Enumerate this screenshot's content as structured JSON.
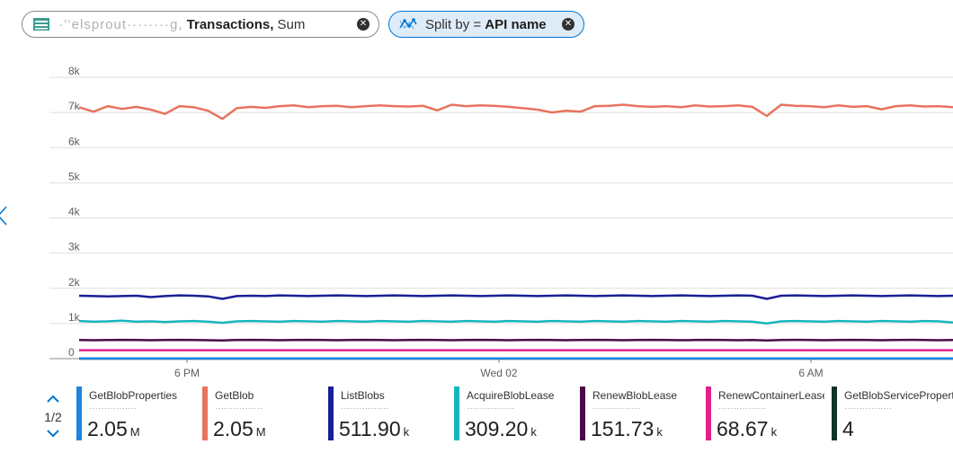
{
  "metric_pill": {
    "resource": "·’‘elsprout········g,",
    "metric": "Transactions,",
    "aggregation": "Sum"
  },
  "split_pill": {
    "prefix": "Split by =",
    "value": "API name"
  },
  "pager": {
    "label": "1/2"
  },
  "colors": {
    "accent": "#0078d4",
    "GetBlobProperties": "#1b85e0",
    "GetBlob": "#e8735e",
    "ListBlobs": "#1a1f96",
    "AcquireBlobLease": "#16b5be",
    "RenewBlobLease": "#4b0b47",
    "RenewContainerLease": "#e0208f",
    "GetBlobServiceProperties": "#0f3527"
  },
  "legend": [
    {
      "name": "GetBlobProperties",
      "sub": "················",
      "value": "2.05",
      "unit": "M",
      "color": "#1b85e0"
    },
    {
      "name": "GetBlob",
      "sub": "················",
      "value": "2.05",
      "unit": "M",
      "color": "#e8735e"
    },
    {
      "name": "ListBlobs",
      "sub": "················",
      "value": "511.90",
      "unit": "k",
      "color": "#1a1f96"
    },
    {
      "name": "AcquireBlobLease",
      "sub": "················",
      "value": "309.20",
      "unit": "k",
      "color": "#16b5be"
    },
    {
      "name": "RenewBlobLease",
      "sub": "················",
      "value": "151.73",
      "unit": "k",
      "color": "#4b0b47"
    },
    {
      "name": "RenewContainerLease",
      "sub": "················",
      "value": "68.67",
      "unit": "k",
      "color": "#e0208f"
    },
    {
      "name": "GetBlobServicePropert...",
      "sub": "················",
      "value": "4",
      "unit": "",
      "color": "#0f3527"
    }
  ],
  "chart_data": {
    "type": "line",
    "ylim": [
      0,
      8000
    ],
    "yticks": [
      "0",
      "1k",
      "2k",
      "3k",
      "4k",
      "5k",
      "6k",
      "7k",
      "8k"
    ],
    "xticks": [
      "6 PM",
      "Wed 02",
      "6 AM"
    ],
    "grid": true,
    "series": [
      {
        "name": "GetBlob",
        "color": "#e8735e",
        "values": [
          7150,
          7020,
          7180,
          7100,
          7160,
          7080,
          6960,
          7180,
          7150,
          7050,
          6820,
          7120,
          7160,
          7130,
          7180,
          7200,
          7150,
          7180,
          7190,
          7150,
          7180,
          7200,
          7180,
          7170,
          7190,
          7060,
          7220,
          7180,
          7200,
          7190,
          7160,
          7120,
          7080,
          7000,
          7050,
          7020,
          7180,
          7190,
          7220,
          7180,
          7160,
          7180,
          7150,
          7200,
          7170,
          7180,
          7200,
          7160,
          6900,
          7220,
          7190,
          7180,
          7150,
          7200,
          7160,
          7180,
          7090,
          7180,
          7200,
          7170,
          7180,
          7150
        ]
      },
      {
        "name": "ListBlobs",
        "color": "#1a1f96",
        "values": [
          1790,
          1780,
          1770,
          1780,
          1790,
          1750,
          1780,
          1800,
          1790,
          1770,
          1700,
          1780,
          1790,
          1780,
          1800,
          1790,
          1780,
          1790,
          1800,
          1790,
          1780,
          1790,
          1800,
          1790,
          1780,
          1790,
          1800,
          1790,
          1780,
          1790,
          1800,
          1790,
          1780,
          1790,
          1800,
          1790,
          1780,
          1790,
          1800,
          1790,
          1780,
          1790,
          1800,
          1790,
          1780,
          1790,
          1800,
          1790,
          1700,
          1790,
          1800,
          1790,
          1780,
          1790,
          1800,
          1790,
          1780,
          1790,
          1800,
          1790,
          1780,
          1790
        ]
      },
      {
        "name": "AcquireBlobLease",
        "color": "#16b5be",
        "values": [
          1070,
          1050,
          1060,
          1080,
          1050,
          1060,
          1040,
          1060,
          1070,
          1050,
          1020,
          1060,
          1070,
          1060,
          1050,
          1070,
          1060,
          1050,
          1070,
          1060,
          1050,
          1070,
          1060,
          1050,
          1070,
          1060,
          1050,
          1070,
          1060,
          1050,
          1070,
          1060,
          1050,
          1070,
          1060,
          1050,
          1070,
          1060,
          1050,
          1070,
          1060,
          1050,
          1070,
          1060,
          1050,
          1070,
          1060,
          1050,
          1000,
          1060,
          1070,
          1060,
          1050,
          1070,
          1060,
          1050,
          1070,
          1060,
          1050,
          1070,
          1060,
          1030
        ]
      },
      {
        "name": "RenewBlobLease",
        "color": "#4b0b47",
        "values": [
          530,
          525,
          530,
          535,
          530,
          525,
          530,
          535,
          530,
          525,
          520,
          530,
          535,
          530,
          525,
          530,
          535,
          530,
          525,
          530,
          535,
          530,
          525,
          530,
          535,
          530,
          525,
          530,
          535,
          530,
          525,
          530,
          535,
          530,
          525,
          530,
          535,
          530,
          525,
          530,
          535,
          530,
          525,
          530,
          535,
          530,
          525,
          530,
          520,
          530,
          535,
          530,
          525,
          530,
          535,
          530,
          525,
          530,
          535,
          530,
          525,
          530
        ]
      },
      {
        "name": "RenewContainerLease",
        "color": "#e0208f",
        "values": [
          240,
          240,
          240,
          240,
          240,
          240,
          240,
          240,
          240,
          240,
          240,
          240,
          240,
          240,
          240,
          240,
          240,
          240,
          240,
          240,
          240,
          240,
          240,
          240,
          240,
          240,
          240,
          240,
          240,
          240,
          240,
          240,
          240,
          240,
          240,
          240,
          240,
          240,
          240,
          240,
          240,
          240,
          240,
          240,
          240,
          240,
          240,
          240,
          240,
          240,
          240,
          240,
          240,
          240,
          240,
          240,
          240,
          240,
          240,
          240,
          240,
          240
        ]
      },
      {
        "name": "GetBlobProperties",
        "color": "#1b85e0",
        "values": [
          8,
          8,
          8,
          8,
          8,
          8,
          8,
          8,
          8,
          8,
          8,
          8,
          8,
          8,
          8,
          8,
          8,
          8,
          8,
          8,
          8,
          8,
          8,
          8,
          8,
          8,
          8,
          8,
          8,
          8,
          8,
          8,
          8,
          8,
          8,
          8,
          8,
          8,
          8,
          8,
          8,
          8,
          8,
          8,
          8,
          8,
          8,
          8,
          8,
          8,
          8,
          8,
          8,
          8,
          8,
          8,
          8,
          8,
          8,
          8,
          8,
          8
        ]
      },
      {
        "name": "GetBlobServicePropert...",
        "color": "#0f3527",
        "values": [
          0,
          0,
          0,
          0,
          0,
          0,
          0,
          0,
          0,
          0,
          0,
          0,
          0,
          0,
          0,
          0,
          0,
          0,
          0,
          0,
          0,
          0,
          0,
          0,
          0,
          0,
          0,
          0,
          0,
          0,
          0,
          0,
          0,
          0,
          0,
          0,
          0,
          0,
          0,
          0,
          0,
          0,
          0,
          0,
          0,
          0,
          0,
          0,
          0,
          0,
          0,
          0,
          0,
          0,
          0,
          0,
          0,
          0,
          0,
          0,
          0,
          0
        ]
      }
    ]
  }
}
